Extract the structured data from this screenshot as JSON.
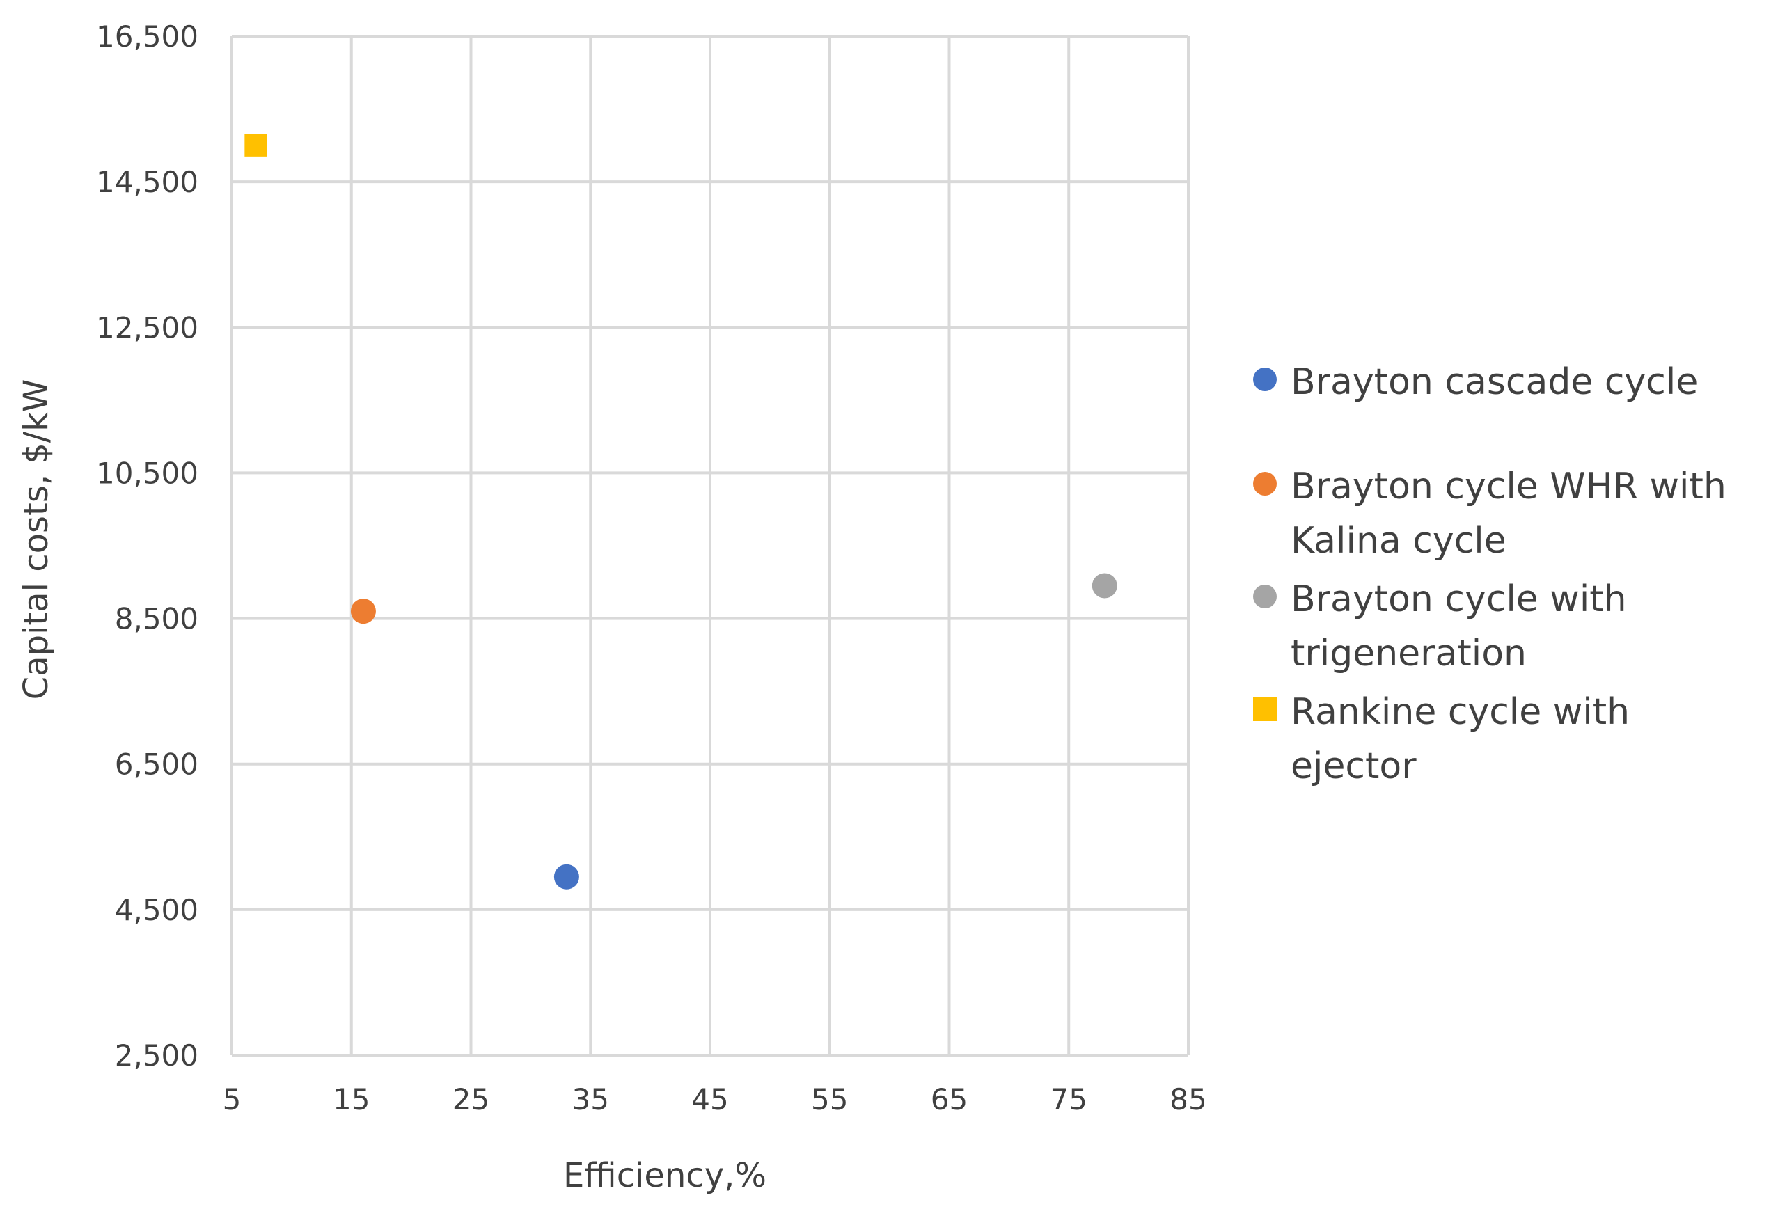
{
  "chart_data": {
    "type": "scatter",
    "title": "",
    "xlabel": "Efficiency,%",
    "ylabel": "Capital costs, $/kW",
    "xlim": [
      5,
      85
    ],
    "ylim": [
      2500,
      16500
    ],
    "xticks": [
      5,
      15,
      25,
      35,
      45,
      55,
      65,
      75,
      85
    ],
    "yticks": [
      2500,
      4500,
      6500,
      8500,
      10500,
      12500,
      14500,
      16500
    ],
    "xtick_labels": [
      "5",
      "15",
      "25",
      "35",
      "45",
      "55",
      "65",
      "75",
      "85"
    ],
    "ytick_labels": [
      "2,500",
      "4,500",
      "6,500",
      "8,500",
      "10,500",
      "12,500",
      "14,500",
      "16,500"
    ],
    "grid": true,
    "legend_position": "right",
    "series": [
      {
        "name": "Brayton cascade cycle",
        "color": "#4472C4",
        "marker": "circle",
        "x": [
          33
        ],
        "y": [
          4950
        ]
      },
      {
        "name": "Brayton cycle WHR with Kalina cycle",
        "color": "#ED7D31",
        "marker": "circle",
        "x": [
          16
        ],
        "y": [
          8600
        ]
      },
      {
        "name": "Brayton cycle with trigeneration",
        "color": "#A5A5A5",
        "marker": "circle",
        "x": [
          78
        ],
        "y": [
          8950
        ]
      },
      {
        "name": "Rankine cycle with ejector",
        "color": "#FFC000",
        "marker": "square",
        "x": [
          7
        ],
        "y": [
          15000
        ]
      }
    ]
  }
}
